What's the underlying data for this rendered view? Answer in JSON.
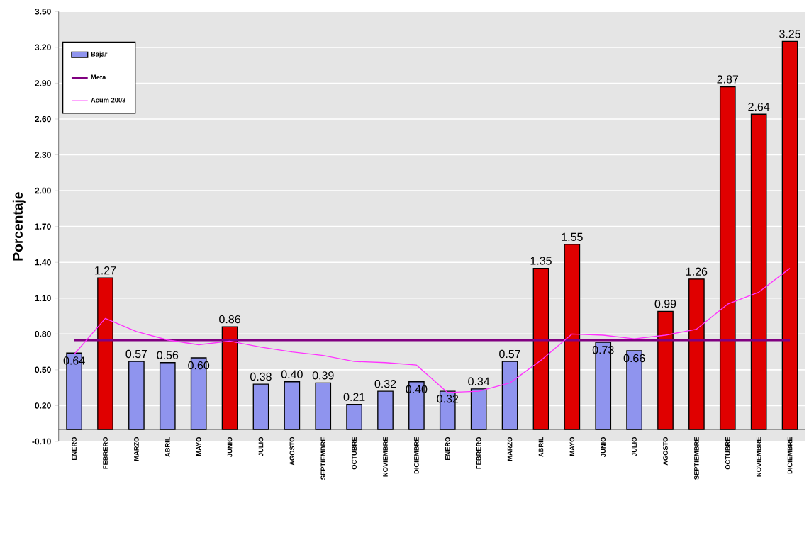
{
  "chart_data": {
    "type": "bar",
    "ylabel": "Porcentaje",
    "categories": [
      "ENERO",
      "FEBRERO",
      "MARZO",
      "ABRIL",
      "MAYO",
      "JUNIO",
      "JULIO",
      "AGOSTO",
      "SEPTIEMBRE",
      "OCTUBRE",
      "NOVIEMBRE",
      "DICIEMBRE",
      "ENERO",
      "FEBRERO",
      "MARZO",
      "ABRIL",
      "MAYO",
      "JUNIO",
      "JULIO",
      "AGOSTO",
      "SEPTIEMBRE",
      "OCTUBRE",
      "NOVIEMBRE",
      "DICIEMBRE"
    ],
    "series": [
      {
        "name": "Bajar",
        "color": "#8f94ee",
        "values": [
          0.64,
          1.27,
          0.57,
          0.56,
          0.6,
          0.86,
          0.38,
          0.4,
          0.39,
          0.21,
          0.32,
          0.4,
          0.32,
          0.34,
          0.57,
          1.35,
          1.55,
          0.73,
          0.66,
          0.99,
          1.26,
          2.87,
          2.64,
          3.25
        ],
        "value_labels": [
          "0.64",
          "1.27",
          "0.57",
          "0.56",
          "0.60",
          "0.86",
          "0.38",
          "0.40",
          "0.39",
          "0.21",
          "0.32",
          "0.40",
          "0.32",
          "0.34",
          "0.57",
          "1.35",
          "1.55",
          "0.73",
          "0.66",
          "0.99",
          "1.26",
          "2.87",
          "2.64",
          "3.25"
        ],
        "colors": [
          "#8f94ee",
          "#e00000",
          "#8f94ee",
          "#8f94ee",
          "#8f94ee",
          "#e00000",
          "#8f94ee",
          "#8f94ee",
          "#8f94ee",
          "#8f94ee",
          "#8f94ee",
          "#8f94ee",
          "#8f94ee",
          "#8f94ee",
          "#8f94ee",
          "#e00000",
          "#e00000",
          "#8f94ee",
          "#8f94ee",
          "#e00000",
          "#e00000",
          "#e00000",
          "#e00000",
          "#e00000"
        ]
      },
      {
        "name": "Meta",
        "type": "line",
        "color": "#800080",
        "values": [
          0.75,
          0.75,
          0.75,
          0.75,
          0.75,
          0.75,
          0.75,
          0.75,
          0.75,
          0.75,
          0.75,
          0.75,
          0.75,
          0.75,
          0.75,
          0.75,
          0.75,
          0.75,
          0.75,
          0.75,
          0.75,
          0.75,
          0.75,
          0.75
        ]
      },
      {
        "name": "Acum 2003",
        "type": "line",
        "color": "#ff33ff",
        "values": [
          0.63,
          0.93,
          0.82,
          0.75,
          0.71,
          0.74,
          0.69,
          0.65,
          0.62,
          0.57,
          0.56,
          0.54,
          0.31,
          0.32,
          0.39,
          0.58,
          0.8,
          0.79,
          0.76,
          0.79,
          0.84,
          1.05,
          1.15,
          1.35
        ]
      }
    ],
    "ylim": [
      -0.1,
      3.5
    ],
    "yticks": [
      {
        "value": -0.1,
        "label": "-0.10"
      },
      {
        "value": 0.2,
        "label": "0.20"
      },
      {
        "value": 0.5,
        "label": "0.50"
      },
      {
        "value": 0.8,
        "label": "0.80"
      },
      {
        "value": 1.1,
        "label": "1.10"
      },
      {
        "value": 1.4,
        "label": "1.40"
      },
      {
        "value": 1.7,
        "label": "1.70"
      },
      {
        "value": 2.0,
        "label": "2.00"
      },
      {
        "value": 2.3,
        "label": "2.30"
      },
      {
        "value": 2.6,
        "label": "2.60"
      },
      {
        "value": 2.9,
        "label": "2.90"
      },
      {
        "value": 3.2,
        "label": "3.20"
      },
      {
        "value": 3.5,
        "label": "3.50"
      }
    ],
    "grid": "y",
    "legend": "top left",
    "marker": "none",
    "line_style": "solid"
  }
}
